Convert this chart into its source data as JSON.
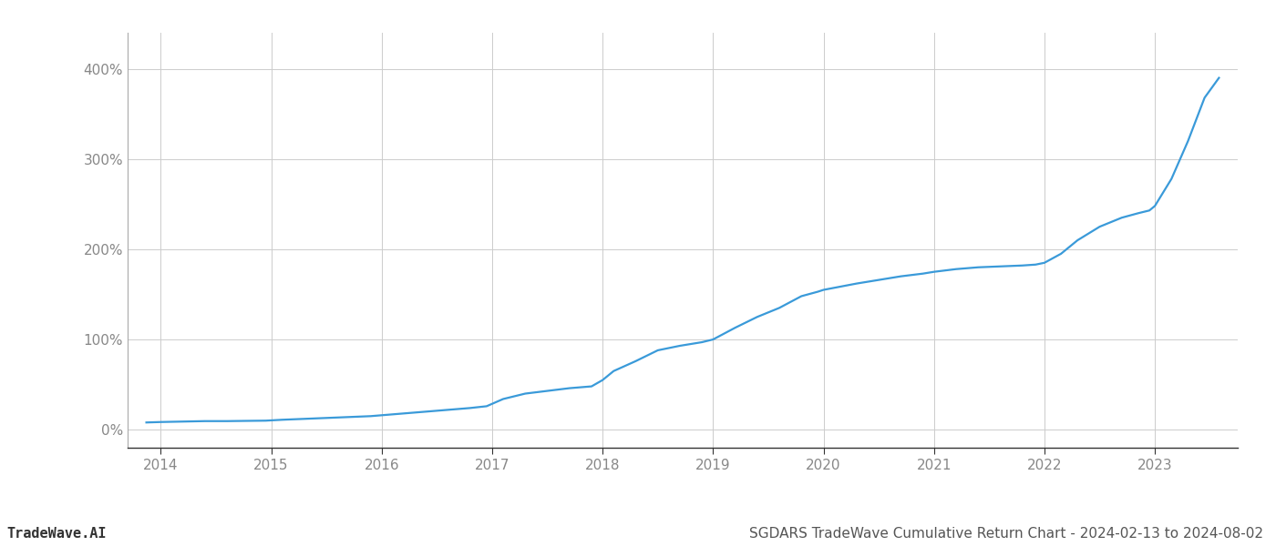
{
  "title": "SGDARS TradeWave Cumulative Return Chart - 2024-02-13 to 2024-08-02",
  "watermark": "TradeWave.AI",
  "line_color": "#3a9ad9",
  "background_color": "#ffffff",
  "grid_color": "#cccccc",
  "x_years": [
    2014,
    2015,
    2016,
    2017,
    2018,
    2019,
    2020,
    2021,
    2022,
    2023
  ],
  "x_data": [
    2013.87,
    2014.0,
    2014.2,
    2014.4,
    2014.6,
    2014.8,
    2014.95,
    2015.1,
    2015.3,
    2015.5,
    2015.7,
    2015.9,
    2016.0,
    2016.2,
    2016.4,
    2016.6,
    2016.8,
    2016.95,
    2017.1,
    2017.3,
    2017.5,
    2017.7,
    2017.9,
    2018.0,
    2018.1,
    2018.3,
    2018.5,
    2018.7,
    2018.9,
    2019.0,
    2019.2,
    2019.4,
    2019.6,
    2019.8,
    2019.95,
    2020.0,
    2020.3,
    2020.5,
    2020.7,
    2020.9,
    2021.0,
    2021.2,
    2021.4,
    2021.6,
    2021.8,
    2021.92,
    2022.0,
    2022.15,
    2022.3,
    2022.5,
    2022.7,
    2022.85,
    2022.95,
    2023.0,
    2023.15,
    2023.3,
    2023.45,
    2023.58
  ],
  "y_data": [
    8,
    8.5,
    9,
    9.5,
    9.5,
    9.8,
    10,
    11,
    12,
    13,
    14,
    15,
    16,
    18,
    20,
    22,
    24,
    26,
    34,
    40,
    43,
    46,
    48,
    55,
    65,
    76,
    88,
    93,
    97,
    100,
    113,
    125,
    135,
    148,
    153,
    155,
    162,
    166,
    170,
    173,
    175,
    178,
    180,
    181,
    182,
    183,
    185,
    195,
    210,
    225,
    235,
    240,
    243,
    248,
    278,
    320,
    368,
    390
  ],
  "yticks": [
    0,
    100,
    200,
    300,
    400
  ],
  "ylim": [
    -20,
    440
  ],
  "xlim": [
    2013.7,
    2023.75
  ],
  "title_fontsize": 11,
  "watermark_fontsize": 11,
  "tick_fontsize": 11,
  "line_width": 1.6
}
